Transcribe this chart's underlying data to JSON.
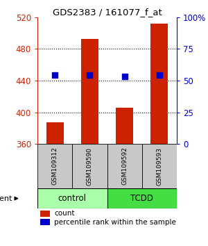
{
  "title": "GDS2383 / 161077_f_at",
  "samples": [
    "GSM109312",
    "GSM109590",
    "GSM109592",
    "GSM109593"
  ],
  "bar_values": [
    387,
    493,
    406,
    512
  ],
  "percentile_values": [
    447,
    447,
    445,
    447
  ],
  "bar_color": "#cc2200",
  "percentile_color": "#0000cc",
  "ylim": [
    360,
    520
  ],
  "yticks": [
    360,
    400,
    440,
    480,
    520
  ],
  "right_yticks_pct": [
    0,
    25,
    50,
    75,
    100
  ],
  "grid_values": [
    400,
    440,
    480
  ],
  "groups": [
    {
      "label": "control",
      "color": "#aaffaa"
    },
    {
      "label": "TCDD",
      "color": "#44dd44"
    }
  ],
  "group_label": "agent",
  "bar_width": 0.5,
  "legend_count_label": "count",
  "legend_percentile_label": "percentile rank within the sample",
  "bar_color_legend": "#cc2200",
  "percentile_color_legend": "#0000cc",
  "left_tick_color": "#cc2200",
  "right_tick_color": "#0000cc",
  "sample_box_color": "#c8c8c8",
  "background_color": "#ffffff"
}
